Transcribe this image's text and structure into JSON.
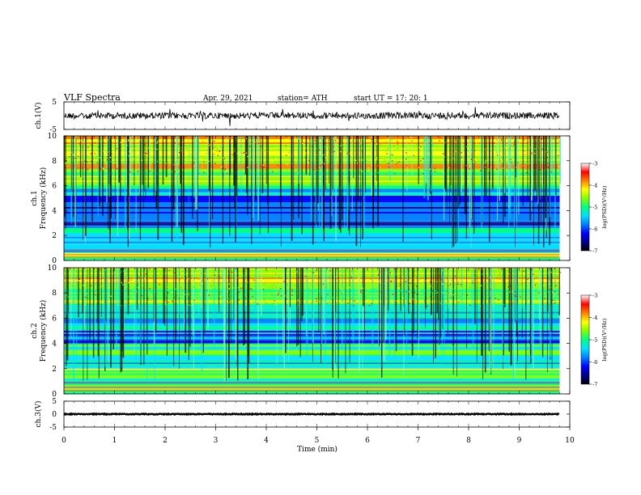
{
  "header": {
    "title": "VLF  Spectra",
    "date": "Apr. 29, 2021",
    "station": "station= ATH",
    "start": "start  UT  =    17: 20: 1"
  },
  "colors": {
    "scale": [
      "#000000",
      "#00008b",
      "#0000ff",
      "#0080ff",
      "#00e0ff",
      "#00ff80",
      "#80ff00",
      "#ffff00",
      "#ff8000",
      "#ff0000",
      "#ffffff"
    ]
  },
  "chart_data": [
    {
      "type": "line",
      "name": "ch1-waveform",
      "ylabel": "ch.1(V)",
      "ylim": [
        -5,
        5
      ],
      "yticks": [
        "5",
        "-5"
      ],
      "xlim": [
        0,
        10
      ],
      "x_end": 9.8,
      "baseline": 0,
      "amplitude_approx": 1.2
    },
    {
      "type": "heatmap",
      "name": "ch1-spectrogram",
      "ylabel": "ch.1\nFrequency  (kHz)",
      "ylim": [
        0,
        10
      ],
      "yticks": [
        "0",
        "2",
        "4",
        "6",
        "8",
        "10"
      ],
      "xlim": [
        0,
        10
      ],
      "x_end": 9.8,
      "colorbar_label": "log(PSD)(V²/Hz)",
      "colorbar_range": [
        -7,
        -3
      ],
      "colorbar_ticks": [
        "-3",
        "-4",
        "-5",
        "-6",
        "-7"
      ],
      "bands": [
        {
          "from": 9.3,
          "to": 10,
          "level": -3.9
        },
        {
          "from": 7.2,
          "to": 9.3,
          "level": -4.4
        },
        {
          "from": 6.0,
          "to": 7.2,
          "level": -5.0
        },
        {
          "from": 5.2,
          "to": 6.0,
          "level": -5.6
        },
        {
          "from": 3.9,
          "to": 5.2,
          "level": -6.5
        },
        {
          "from": 3.2,
          "to": 3.9,
          "level": -6.2
        },
        {
          "from": 2.6,
          "to": 3.2,
          "level": -6.6
        },
        {
          "from": 1.9,
          "to": 2.6,
          "level": -5.3
        },
        {
          "from": 1.2,
          "to": 1.9,
          "level": -6.1
        },
        {
          "from": 0.6,
          "to": 1.2,
          "level": -5.6
        },
        {
          "from": 0.0,
          "to": 0.6,
          "level": -4.8
        }
      ]
    },
    {
      "type": "heatmap",
      "name": "ch2-spectrogram",
      "ylabel": "ch.2\nFrequency  (kHz)",
      "ylim": [
        0,
        10
      ],
      "yticks": [
        "0",
        "2",
        "4",
        "6",
        "8",
        "10"
      ],
      "xlim": [
        0,
        10
      ],
      "x_end": 9.8,
      "colorbar_label": "log(PSD)(V²/Hz)",
      "colorbar_range": [
        -7,
        -3
      ],
      "colorbar_ticks": [
        "-3",
        "-4",
        "-5",
        "-6",
        "-7"
      ],
      "bands": [
        {
          "from": 8.8,
          "to": 10,
          "level": -4.4
        },
        {
          "from": 6.5,
          "to": 8.8,
          "level": -5.0
        },
        {
          "from": 5.0,
          "to": 6.5,
          "level": -5.6
        },
        {
          "from": 4.0,
          "to": 5.0,
          "level": -6.2
        },
        {
          "from": 3.0,
          "to": 4.0,
          "level": -5.3
        },
        {
          "from": 2.0,
          "to": 3.0,
          "level": -5.8
        },
        {
          "from": 1.2,
          "to": 2.0,
          "level": -4.7
        },
        {
          "from": 0.5,
          "to": 1.2,
          "level": -5.4
        },
        {
          "from": 0.0,
          "to": 0.5,
          "level": -4.9
        }
      ]
    },
    {
      "type": "line",
      "name": "ch3-waveform",
      "ylabel": "ch.3(V)",
      "ylim": [
        -5,
        5
      ],
      "yticks": [
        "5",
        "0",
        "-5"
      ],
      "xlim": [
        0,
        10
      ],
      "x_end": 9.8,
      "baseline": 0,
      "amplitude_approx": 0.15
    }
  ],
  "xaxis": {
    "label": "Time  (min)",
    "ticks": [
      "0",
      "1",
      "2",
      "3",
      "4",
      "5",
      "6",
      "7",
      "8",
      "9",
      "10"
    ]
  }
}
